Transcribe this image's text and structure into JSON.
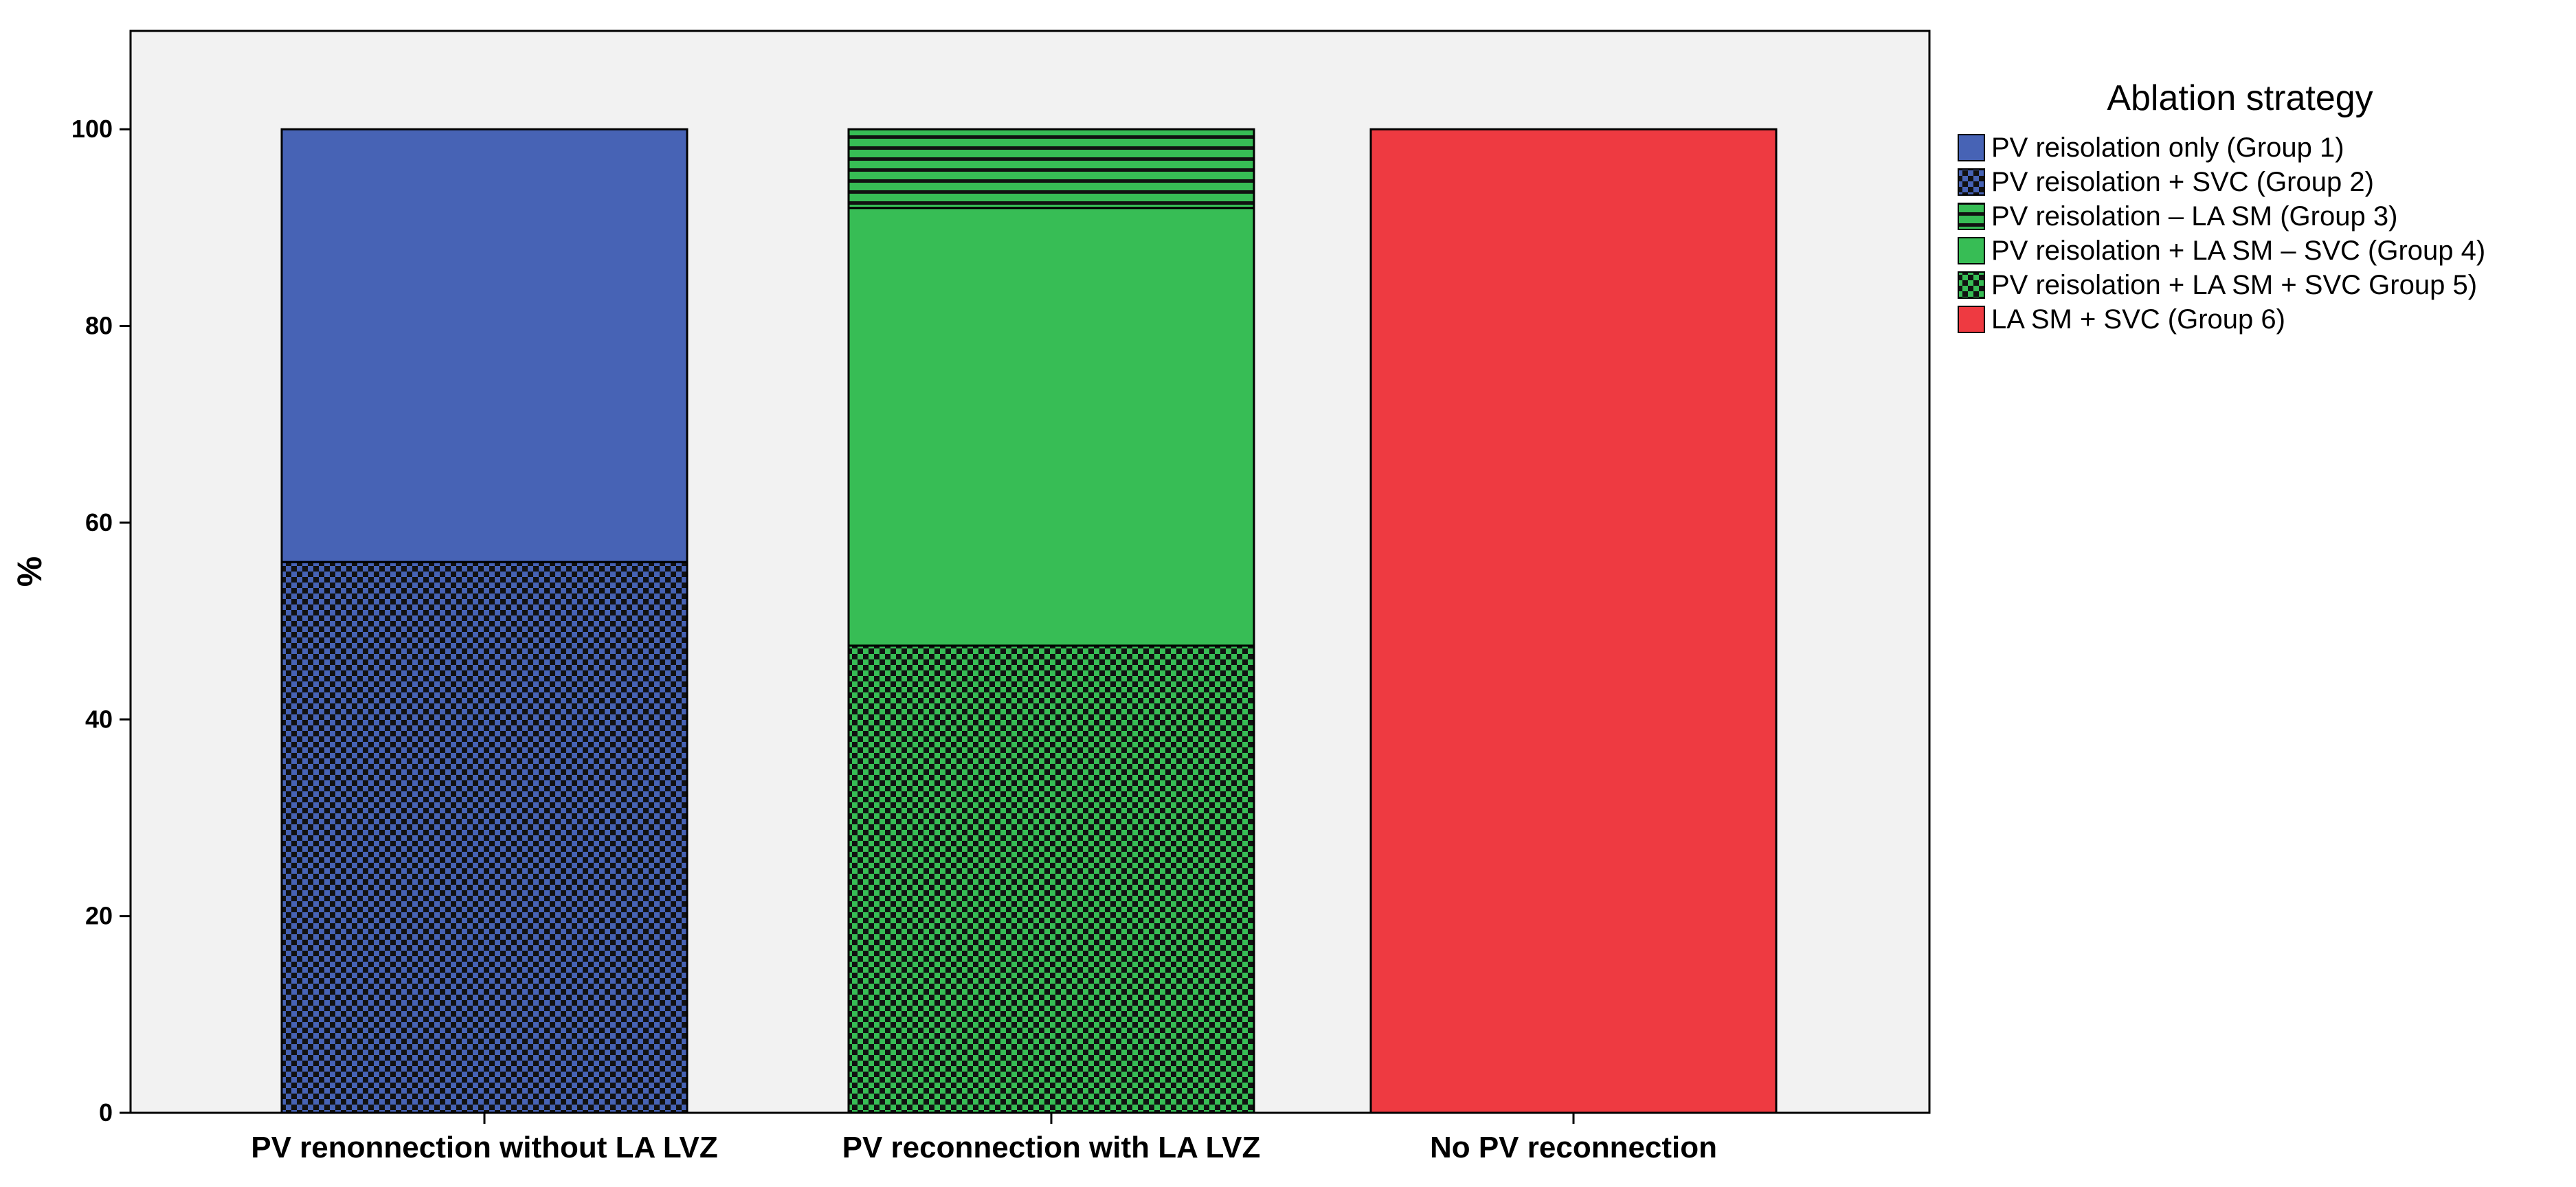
{
  "chart_data": {
    "type": "bar",
    "stacked": true,
    "percent_stacked": true,
    "categories": [
      "PV renonnection without LA LVZ",
      "PV reconnection with LA LVZ",
      "No PV reconnection"
    ],
    "series": [
      {
        "name": "PV reisolation only (Group 1)",
        "values": [
          44,
          0,
          0
        ],
        "color": "#4763b5",
        "pattern": "solid"
      },
      {
        "name": "PV reisolation + SVC (Group 2)",
        "values": [
          56,
          0,
          0
        ],
        "color": "#4763b5",
        "pattern": "checker"
      },
      {
        "name": "PV reisolation – LA SM (Group 3)",
        "values": [
          0,
          8,
          0
        ],
        "color": "#37bd55",
        "pattern": "hlines"
      },
      {
        "name": "PV reisolation + LA SM – SVC (Group 4)",
        "values": [
          0,
          44.5,
          0
        ],
        "color": "#37bd55",
        "pattern": "solid"
      },
      {
        "name": "PV reisolation + LA SM + SVC Group 5)",
        "values": [
          0,
          47.5,
          0
        ],
        "color": "#37bd55",
        "pattern": "checker"
      },
      {
        "name": "LA SM + SVC (Group 6)",
        "values": [
          0,
          0,
          100
        ],
        "color": "#ee3a41",
        "pattern": "solid"
      }
    ],
    "stack_order_bottom_to_top": [
      4,
      1,
      3,
      2,
      0,
      5
    ],
    "ylabel": "%",
    "xlabel": "",
    "ylim": [
      0,
      110
    ],
    "yticks": [
      0,
      20,
      40,
      60,
      80,
      100
    ],
    "grid": false,
    "legend": {
      "title": "Ablation strategy",
      "placement": "right"
    },
    "plot_background": "#f2f2f2"
  }
}
